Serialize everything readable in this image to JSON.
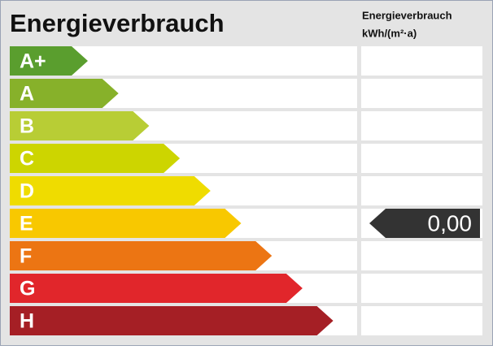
{
  "header": {
    "title": "Energieverbrauch",
    "unit_title": "Energieverbrauch",
    "unit": "kWh/(m²·a)"
  },
  "classes": [
    {
      "label": "A+",
      "color": "#5a9e2e"
    },
    {
      "label": "A",
      "color": "#87b12a"
    },
    {
      "label": "B",
      "color": "#b8cd35"
    },
    {
      "label": "C",
      "color": "#cdd500"
    },
    {
      "label": "D",
      "color": "#efdc00"
    },
    {
      "label": "E",
      "color": "#f8c800"
    },
    {
      "label": "F",
      "color": "#ec7513"
    },
    {
      "label": "G",
      "color": "#e1262b"
    },
    {
      "label": "H",
      "color": "#a51f25"
    }
  ],
  "indicator": {
    "value": "0,00"
  }
}
